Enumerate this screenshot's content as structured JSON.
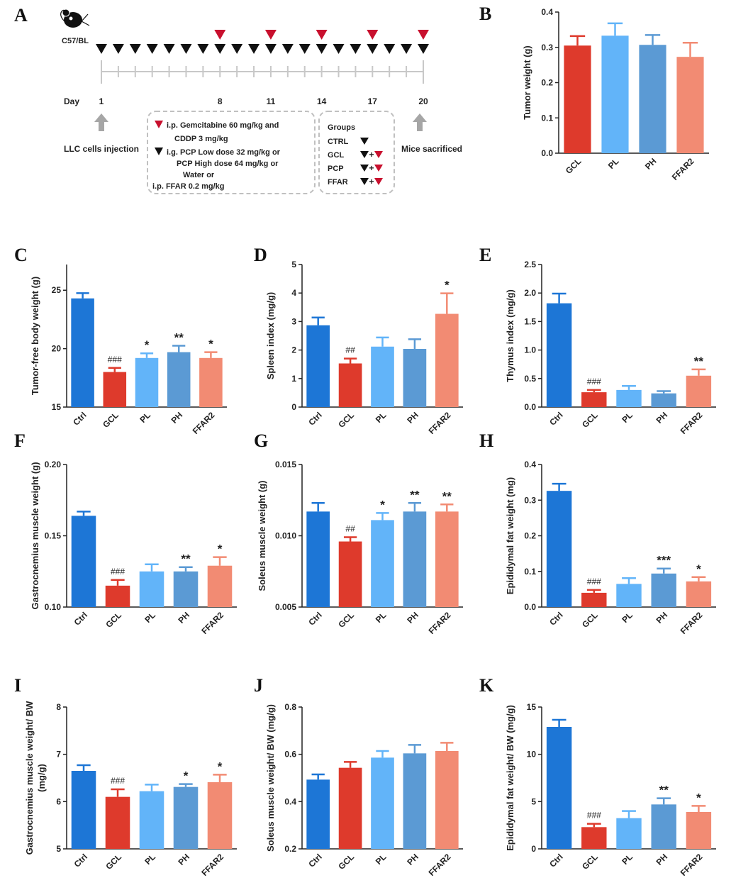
{
  "schematic": {
    "panel_label": "A",
    "mouse_strain": "C57/BL",
    "day_label": "Day",
    "day_ticks": [
      "1",
      "8",
      "11",
      "14",
      "17",
      "20"
    ],
    "black_marker_count": 20,
    "red_marker_days": [
      8,
      11,
      14,
      17,
      20
    ],
    "injection_label": "LLC cells injection",
    "sacrifice_label": "Mice sacrificed",
    "legend_lines": [
      "i.p. Gemcitabine  60 mg/kg  and",
      "CDDP  3 mg/kg",
      "i.g. PCP   Low  dose 32 mg/kg  or",
      "PCP   High dose 64 mg/kg  or",
      "Water or",
      "i.p. FFAR 0.2 mg/kg"
    ],
    "groups_title": "Groups",
    "groups": [
      {
        "name": "CTRL",
        "marker": "▼"
      },
      {
        "name": "GCL",
        "marker": "▼+▼"
      },
      {
        "name": "PCP",
        "marker": "▼+▼"
      },
      {
        "name": "FFAR",
        "marker": "▼+▼"
      }
    ],
    "colors": {
      "black": "#111111",
      "red": "#c8102e",
      "arrow": "#a6a6a6"
    }
  },
  "chart_data": [
    {
      "id": "B",
      "type": "bar",
      "ylabel": "Tumor weight (g)",
      "categories": [
        "GCL",
        "PL",
        "PH",
        "FFAR2"
      ],
      "values": [
        0.305,
        0.333,
        0.307,
        0.273
      ],
      "errors": [
        0.027,
        0.035,
        0.028,
        0.04
      ],
      "annotations": [
        "",
        "",
        "",
        ""
      ],
      "ylim": [
        0,
        0.4
      ],
      "yticks": [
        "0.0",
        "0.1",
        "0.2",
        "0.3",
        "0.4"
      ],
      "colors": [
        "#de3a2c",
        "#62b4f9",
        "#5b9ad4",
        "#f28b73"
      ]
    },
    {
      "id": "C",
      "type": "bar",
      "ylabel": "Tumor-free body weight (g)",
      "categories": [
        "Ctrl",
        "GCL",
        "PL",
        "PH",
        "FFAR2"
      ],
      "values": [
        24.3,
        18.0,
        19.2,
        19.7,
        19.2
      ],
      "errors": [
        0.45,
        0.35,
        0.4,
        0.55,
        0.5
      ],
      "annotations": [
        "",
        "###",
        "*",
        "**",
        "*"
      ],
      "ylim": [
        15,
        27.2
      ],
      "yticks": [
        "15",
        "20",
        "25"
      ],
      "colors": [
        "#1d76d6",
        "#de3a2c",
        "#62b4f9",
        "#5b9ad4",
        "#f28b73"
      ]
    },
    {
      "id": "D",
      "type": "bar",
      "ylabel": "Spleen index (mg/g)",
      "categories": [
        "Ctrl",
        "GCL",
        "PL",
        "PH",
        "FFAR2"
      ],
      "values": [
        2.87,
        1.53,
        2.12,
        2.04,
        3.27
      ],
      "errors": [
        0.27,
        0.17,
        0.32,
        0.34,
        0.72
      ],
      "annotations": [
        "",
        "##",
        "",
        "",
        "*"
      ],
      "ylim": [
        0,
        5
      ],
      "yticks": [
        "0",
        "1",
        "2",
        "3",
        "4",
        "5"
      ],
      "colors": [
        "#1d76d6",
        "#de3a2c",
        "#62b4f9",
        "#5b9ad4",
        "#f28b73"
      ]
    },
    {
      "id": "E",
      "type": "bar",
      "ylabel": "Thymus index (mg/g)",
      "categories": [
        "Ctrl",
        "GCL",
        "PL",
        "PH",
        "FFAR2"
      ],
      "values": [
        1.82,
        0.26,
        0.3,
        0.24,
        0.55
      ],
      "errors": [
        0.17,
        0.04,
        0.07,
        0.04,
        0.11
      ],
      "annotations": [
        "",
        "###",
        "",
        "",
        "**"
      ],
      "ylim": [
        0,
        2.5
      ],
      "yticks": [
        "0.0",
        "0.5",
        "1.0",
        "1.5",
        "2.0",
        "2.5"
      ],
      "colors": [
        "#1d76d6",
        "#de3a2c",
        "#62b4f9",
        "#5b9ad4",
        "#f28b73"
      ]
    },
    {
      "id": "F",
      "type": "bar",
      "ylabel": "Gastrocnemius muscle weight (g)",
      "categories": [
        "Ctrl",
        "GCL",
        "PL",
        "PH",
        "FFAR2"
      ],
      "values": [
        0.164,
        0.115,
        0.125,
        0.125,
        0.129
      ],
      "errors": [
        0.003,
        0.004,
        0.005,
        0.003,
        0.006
      ],
      "annotations": [
        "",
        "###",
        "",
        "**",
        "*"
      ],
      "ylim": [
        0.1,
        0.2
      ],
      "yticks": [
        "0.10",
        "0.15",
        "0.20"
      ],
      "colors": [
        "#1d76d6",
        "#de3a2c",
        "#62b4f9",
        "#5b9ad4",
        "#f28b73"
      ]
    },
    {
      "id": "G",
      "type": "bar",
      "ylabel": "Soleus muscle weight (g)",
      "categories": [
        "Ctrl",
        "GCL",
        "PL",
        "PH",
        "FFAR2"
      ],
      "values": [
        0.0117,
        0.0096,
        0.0111,
        0.0117,
        0.0117
      ],
      "errors": [
        0.0006,
        0.0003,
        0.0005,
        0.0006,
        0.0005
      ],
      "annotations": [
        "",
        "##",
        "*",
        "**",
        "**"
      ],
      "ylim": [
        0.005,
        0.015
      ],
      "yticks": [
        "0.005",
        "0.010",
        "0.015"
      ],
      "colors": [
        "#1d76d6",
        "#de3a2c",
        "#62b4f9",
        "#5b9ad4",
        "#f28b73"
      ]
    },
    {
      "id": "H",
      "type": "bar",
      "ylabel": "Epididymal fat weight (mg)",
      "categories": [
        "Ctrl",
        "GCL",
        "PL",
        "PH",
        "FFAR2"
      ],
      "values": [
        0.326,
        0.04,
        0.065,
        0.094,
        0.072
      ],
      "errors": [
        0.02,
        0.008,
        0.016,
        0.014,
        0.012
      ],
      "annotations": [
        "",
        "###",
        "",
        "***",
        "*"
      ],
      "ylim": [
        0,
        0.4
      ],
      "yticks": [
        "0.0",
        "0.1",
        "0.2",
        "0.3",
        "0.4"
      ],
      "colors": [
        "#1d76d6",
        "#de3a2c",
        "#62b4f9",
        "#5b9ad4",
        "#f28b73"
      ]
    },
    {
      "id": "I",
      "type": "bar",
      "ylabel": "Gastrocnemius muscle weight/ BW (mg/g)",
      "categories": [
        "Ctrl",
        "GCL",
        "PL",
        "PH",
        "FFAR2"
      ],
      "values": [
        6.65,
        6.1,
        6.22,
        6.31,
        6.41
      ],
      "errors": [
        0.12,
        0.16,
        0.14,
        0.06,
        0.16
      ],
      "annotations": [
        "",
        "###",
        "",
        "*",
        "*"
      ],
      "ylim": [
        5,
        8
      ],
      "yticks": [
        "5",
        "6",
        "7",
        "8"
      ],
      "colors": [
        "#1d76d6",
        "#de3a2c",
        "#62b4f9",
        "#5b9ad4",
        "#f28b73"
      ]
    },
    {
      "id": "J",
      "type": "bar",
      "ylabel": "Soleus muscle weight/ BW (mg/g)",
      "categories": [
        "Ctrl",
        "GCL",
        "PL",
        "PH",
        "FFAR2"
      ],
      "values": [
        0.493,
        0.543,
        0.586,
        0.604,
        0.614
      ],
      "errors": [
        0.022,
        0.025,
        0.028,
        0.036,
        0.035
      ],
      "annotations": [
        "",
        "",
        "",
        "",
        ""
      ],
      "ylim": [
        0.2,
        0.8
      ],
      "yticks": [
        "0.2",
        "0.4",
        "0.6",
        "0.8"
      ],
      "colors": [
        "#1d76d6",
        "#de3a2c",
        "#62b4f9",
        "#5b9ad4",
        "#f28b73"
      ]
    },
    {
      "id": "K",
      "type": "bar",
      "ylabel": "Epididymal fat weight/ BW (mg/g)",
      "categories": [
        "Ctrl",
        "GCL",
        "PL",
        "PH",
        "FFAR2"
      ],
      "values": [
        12.9,
        2.3,
        3.25,
        4.7,
        3.9
      ],
      "errors": [
        0.75,
        0.35,
        0.75,
        0.65,
        0.65
      ],
      "annotations": [
        "",
        "###",
        "",
        "**",
        "*"
      ],
      "ylim": [
        0,
        15
      ],
      "yticks": [
        "0",
        "5",
        "10",
        "15"
      ],
      "colors": [
        "#1d76d6",
        "#de3a2c",
        "#62b4f9",
        "#5b9ad4",
        "#f28b73"
      ]
    }
  ]
}
